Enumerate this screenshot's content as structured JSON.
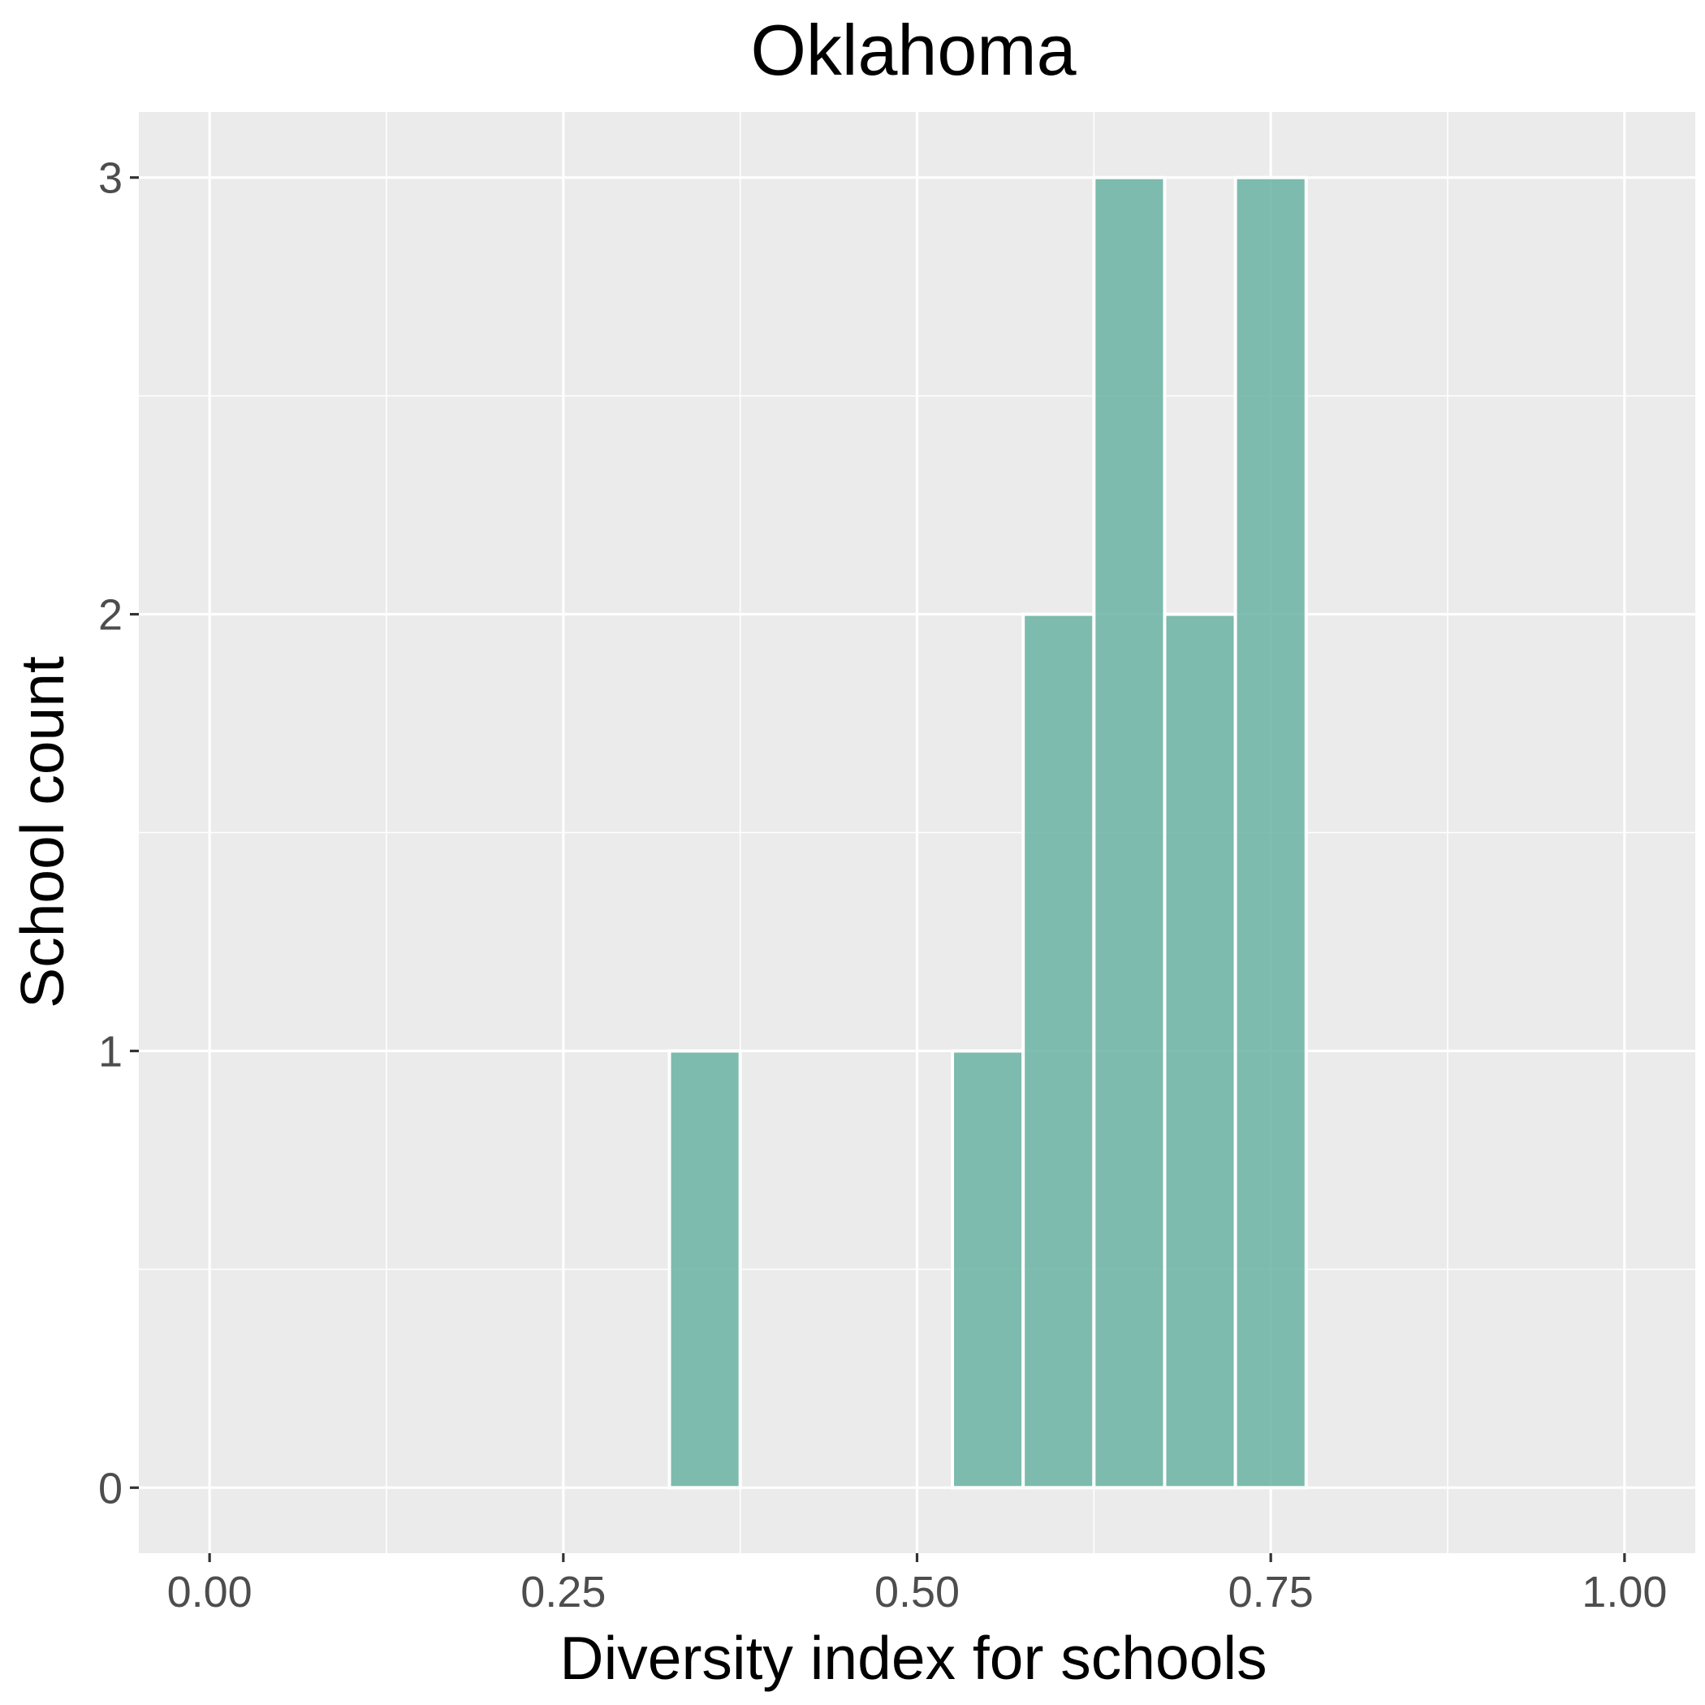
{
  "chart_data": {
    "type": "bar",
    "subtype": "histogram",
    "title": "Oklahoma",
    "xlabel": "Diversity index for schools",
    "ylabel": "School count",
    "xlim": [
      -0.05,
      1.05
    ],
    "ylim": [
      -0.15,
      3.15
    ],
    "x_ticks": [
      0,
      0.25,
      0.5,
      0.75,
      1
    ],
    "x_tick_labels": [
      "0.00",
      "0.25",
      "0.50",
      "0.75",
      "1.00"
    ],
    "y_ticks": [
      0,
      1,
      2,
      3
    ],
    "y_tick_labels": [
      "0",
      "1",
      "2",
      "3"
    ],
    "bin_width": 0.05,
    "bins": [
      {
        "x_start": 0.325,
        "x_end": 0.375,
        "count": 1
      },
      {
        "x_start": 0.525,
        "x_end": 0.575,
        "count": 1
      },
      {
        "x_start": 0.575,
        "x_end": 0.625,
        "count": 2
      },
      {
        "x_start": 0.625,
        "x_end": 0.675,
        "count": 3
      },
      {
        "x_start": 0.675,
        "x_end": 0.725,
        "count": 2
      },
      {
        "x_start": 0.725,
        "x_end": 0.775,
        "count": 3
      }
    ],
    "grid": true,
    "legend": "none",
    "colors": {
      "bar_fill": "#69b3a2",
      "panel_background": "#ebebeb",
      "grid": "#ffffff"
    }
  }
}
